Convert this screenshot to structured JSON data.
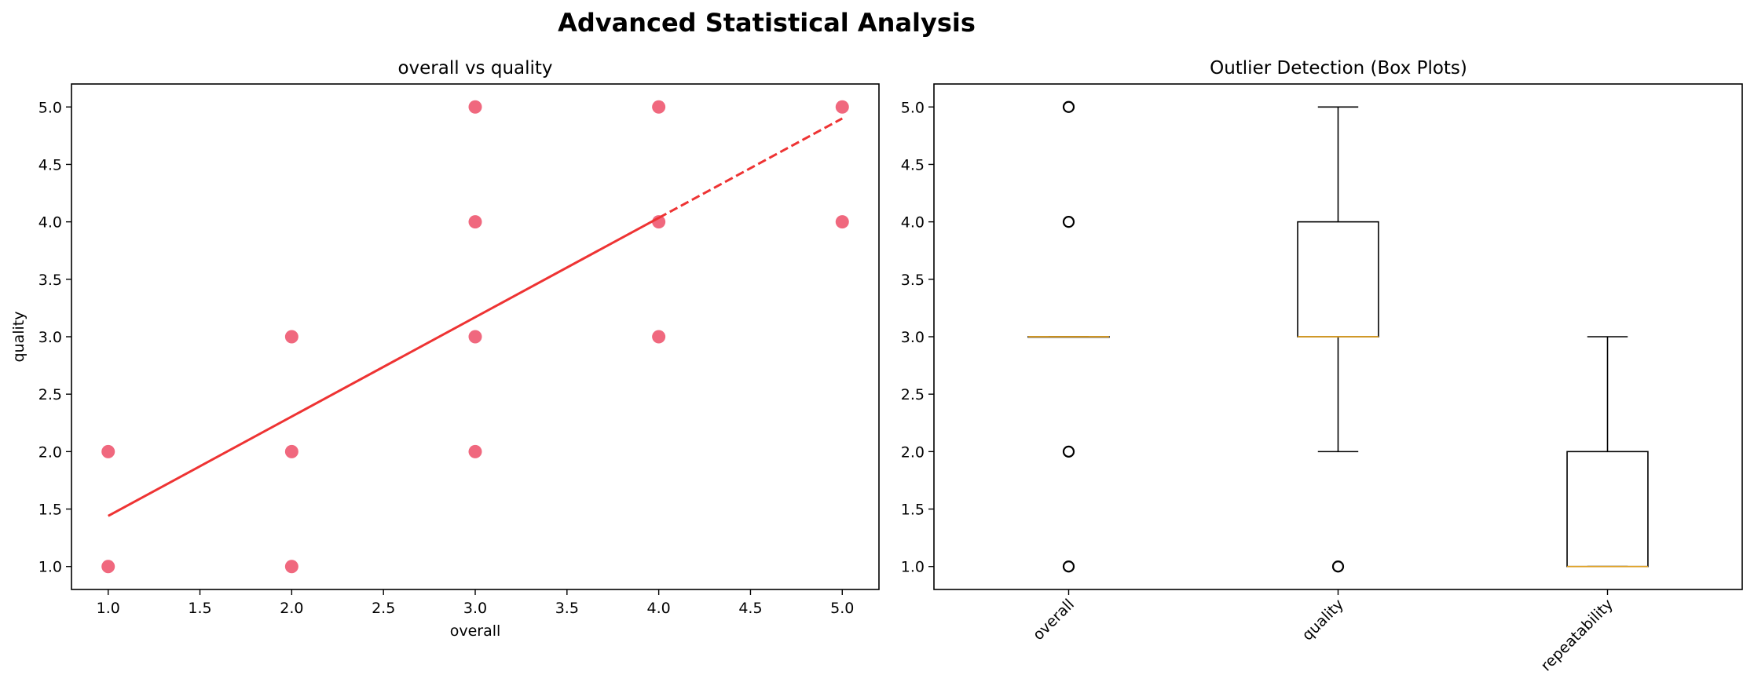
{
  "figure": {
    "suptitle": "Advanced Statistical Analysis"
  },
  "chart_data": [
    {
      "type": "scatter",
      "title": "overall vs quality",
      "xlabel": "overall",
      "ylabel": "quality",
      "xlim": [
        0.8,
        5.2
      ],
      "ylim": [
        0.8,
        5.2
      ],
      "xticks": [
        "1.0",
        "1.5",
        "2.0",
        "2.5",
        "3.0",
        "3.5",
        "4.0",
        "4.5",
        "5.0"
      ],
      "yticks": [
        "1.0",
        "1.5",
        "2.0",
        "2.5",
        "3.0",
        "3.5",
        "4.0",
        "4.5",
        "5.0"
      ],
      "points": [
        {
          "x": 1,
          "y": 1
        },
        {
          "x": 1,
          "y": 2
        },
        {
          "x": 2,
          "y": 1
        },
        {
          "x": 2,
          "y": 2
        },
        {
          "x": 2,
          "y": 3
        },
        {
          "x": 3,
          "y": 2
        },
        {
          "x": 3,
          "y": 3
        },
        {
          "x": 3,
          "y": 4
        },
        {
          "x": 3,
          "y": 5
        },
        {
          "x": 4,
          "y": 3
        },
        {
          "x": 4,
          "y": 4
        },
        {
          "x": 4,
          "y": 5
        },
        {
          "x": 5,
          "y": 4
        },
        {
          "x": 5,
          "y": 5
        }
      ],
      "trend_line": {
        "x0": 1.0,
        "y0": 1.44,
        "x1": 5.0,
        "y1": 4.9,
        "dash_from_x": 4.0
      },
      "point_color": "#f0687e",
      "line_color": "#ee3333",
      "grid": false
    },
    {
      "type": "box",
      "title": "Outlier Detection (Box Plots)",
      "ylim": [
        0.8,
        5.2
      ],
      "yticks": [
        "1.0",
        "1.5",
        "2.0",
        "2.5",
        "3.0",
        "3.5",
        "4.0",
        "4.5",
        "5.0"
      ],
      "categories": [
        "overall",
        "quality",
        "repeatability"
      ],
      "boxes": [
        {
          "name": "overall",
          "q1": 3,
          "median": 3,
          "q3": 3,
          "whisker_low": 3,
          "whisker_high": 3,
          "outliers": [
            1,
            2,
            4,
            5
          ]
        },
        {
          "name": "quality",
          "q1": 3,
          "median": 3,
          "q3": 4,
          "whisker_low": 2,
          "whisker_high": 5,
          "outliers": [
            1
          ]
        },
        {
          "name": "repeatability",
          "q1": 1,
          "median": 1,
          "q3": 2,
          "whisker_low": 1,
          "whisker_high": 3,
          "outliers": []
        }
      ],
      "median_color": "#e0a020",
      "grid": false
    }
  ]
}
